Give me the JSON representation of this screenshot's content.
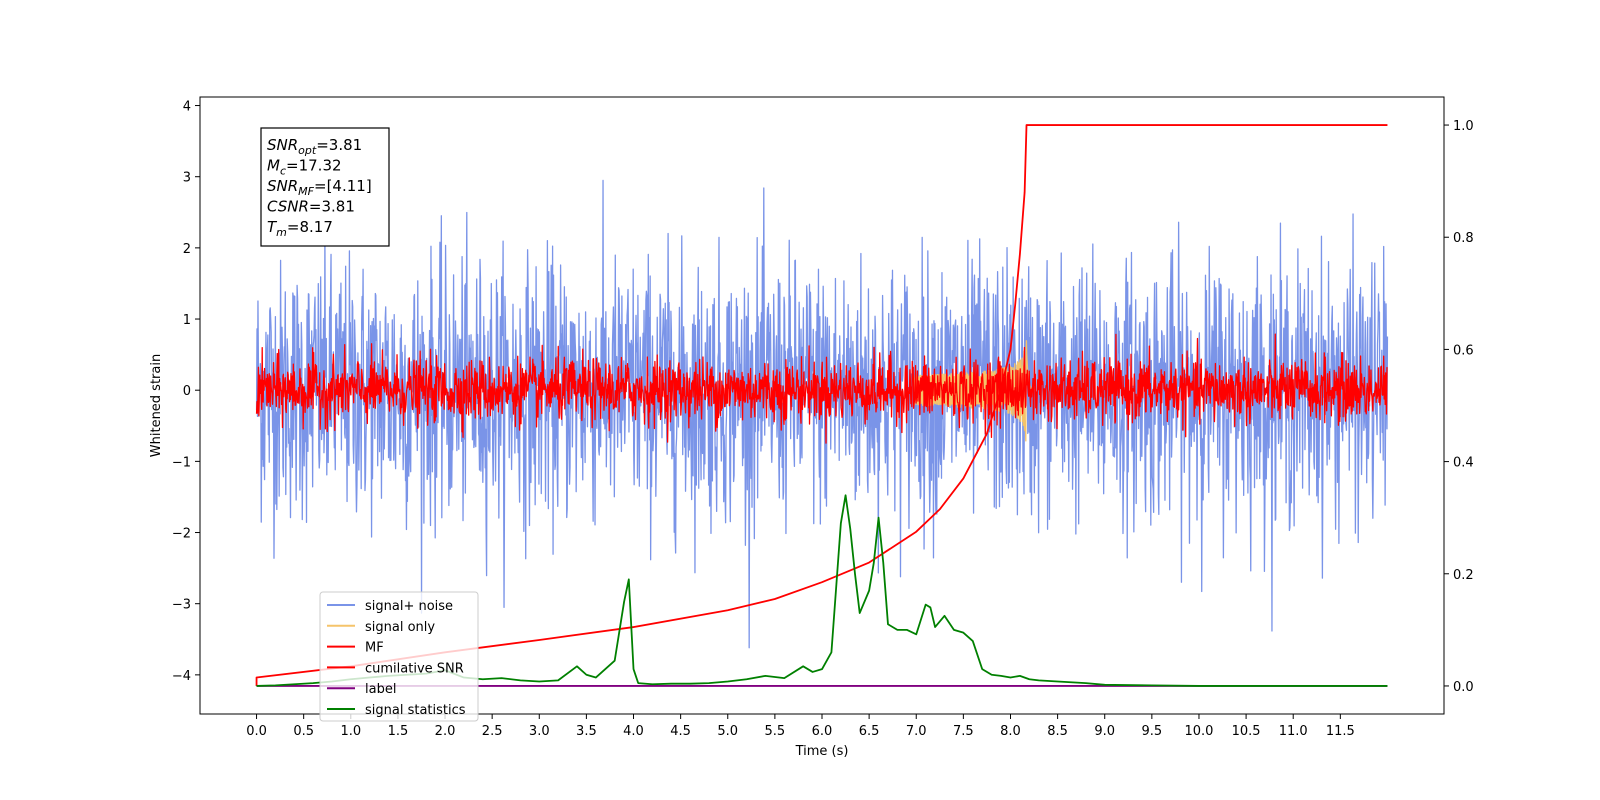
{
  "chart_data": {
    "type": "line",
    "xlabel": "Time (s)",
    "ylabel": "Whitened strain",
    "xlim": [
      -0.6,
      12.6
    ],
    "ylim": [
      -4.55,
      4.12
    ],
    "y2lim": [
      -0.05,
      1.05
    ],
    "x_ticks": [
      "0.0",
      "0.5",
      "1.0",
      "1.5",
      "2.0",
      "2.5",
      "3.0",
      "3.5",
      "4.0",
      "4.5",
      "5.0",
      "5.5",
      "6.0",
      "6.5",
      "7.0",
      "7.5",
      "8.0",
      "8.5",
      "9.0",
      "9.5",
      "10.0",
      "10.5",
      "11.0",
      "11.5"
    ],
    "y_ticks": [
      "4",
      "3",
      "2",
      "1",
      "0",
      "−1",
      "−2",
      "−3",
      "−4"
    ],
    "y2_ticks": [
      "1.0",
      "0.8",
      "0.6",
      "0.4",
      "0.2",
      "0.0"
    ],
    "grid": false,
    "legend_position": "lower-left",
    "annotation": {
      "lines": [
        {
          "sym": "SNR",
          "sub": "opt",
          "val": "=3.81"
        },
        {
          "sym": "M",
          "sub": "c",
          "val": "=17.32"
        },
        {
          "sym": "SNR",
          "sub": "MF",
          "val": "=[4.11]"
        },
        {
          "sym": "CSNR",
          "sub": "",
          "val": "=3.81"
        },
        {
          "sym": "T",
          "sub": "m",
          "val": "=8.17"
        }
      ]
    },
    "series": [
      {
        "name": "signal+ noise",
        "color": "#7a94e8",
        "axis": "left",
        "kind": "noise",
        "std": 0.9,
        "x_range": [
          0.0,
          12.0
        ]
      },
      {
        "name": "signal only",
        "color": "#f5c46a",
        "axis": "left",
        "kind": "chirp",
        "merger": 8.17,
        "peak": 0.6
      },
      {
        "name": "MF",
        "color": "#ff0000",
        "axis": "left",
        "kind": "noise",
        "std": 0.22,
        "x_range": [
          0.0,
          12.0
        ]
      },
      {
        "name": "cumilative SNR",
        "color": "#ff0000",
        "axis": "right",
        "x": [
          0.0,
          0.0,
          1.0,
          2.0,
          3.0,
          4.0,
          5.0,
          5.5,
          6.0,
          6.5,
          7.0,
          7.25,
          7.5,
          7.75,
          7.9,
          8.0,
          8.05,
          8.1,
          8.15,
          8.17,
          9.0,
          10.0,
          11.0,
          12.0
        ],
        "y": [
          0.0,
          0.015,
          0.035,
          0.06,
          0.082,
          0.105,
          0.135,
          0.155,
          0.185,
          0.22,
          0.275,
          0.315,
          0.37,
          0.45,
          0.53,
          0.6,
          0.68,
          0.77,
          0.88,
          1.0,
          1.0,
          1.0,
          1.0,
          1.0
        ]
      },
      {
        "name": "label",
        "color": "#800080",
        "axis": "right",
        "x": [
          0.0,
          12.0
        ],
        "y": [
          0.0,
          0.0
        ]
      },
      {
        "name": "signal statistics",
        "color": "#008000",
        "axis": "right",
        "x": [
          0.0,
          0.2,
          0.4,
          0.6,
          0.8,
          1.0,
          1.2,
          1.4,
          1.6,
          1.8,
          2.0,
          2.2,
          2.4,
          2.6,
          2.8,
          3.0,
          3.2,
          3.4,
          3.5,
          3.6,
          3.8,
          3.9,
          3.95,
          4.0,
          4.05,
          4.2,
          4.4,
          4.6,
          4.8,
          5.0,
          5.2,
          5.4,
          5.6,
          5.8,
          5.9,
          6.0,
          6.1,
          6.2,
          6.25,
          6.3,
          6.35,
          6.4,
          6.5,
          6.55,
          6.6,
          6.65,
          6.7,
          6.8,
          6.9,
          7.0,
          7.1,
          7.15,
          7.2,
          7.3,
          7.4,
          7.5,
          7.6,
          7.7,
          7.8,
          7.9,
          8.0,
          8.1,
          8.2,
          8.3,
          8.5,
          8.8,
          9.0,
          9.5,
          10.0,
          10.5,
          11.0,
          11.5,
          12.0
        ],
        "y": [
          0.0,
          0.001,
          0.003,
          0.005,
          0.008,
          0.012,
          0.015,
          0.018,
          0.02,
          0.022,
          0.028,
          0.015,
          0.012,
          0.014,
          0.01,
          0.008,
          0.01,
          0.035,
          0.02,
          0.015,
          0.045,
          0.15,
          0.19,
          0.03,
          0.005,
          0.003,
          0.004,
          0.004,
          0.005,
          0.008,
          0.012,
          0.018,
          0.014,
          0.035,
          0.025,
          0.03,
          0.06,
          0.29,
          0.34,
          0.28,
          0.2,
          0.13,
          0.17,
          0.22,
          0.3,
          0.22,
          0.11,
          0.1,
          0.1,
          0.092,
          0.145,
          0.14,
          0.105,
          0.125,
          0.1,
          0.095,
          0.08,
          0.03,
          0.02,
          0.018,
          0.015,
          0.018,
          0.012,
          0.01,
          0.008,
          0.005,
          0.002,
          0.001,
          0.0,
          0.0,
          0.0,
          0.0,
          0.0
        ]
      }
    ]
  }
}
